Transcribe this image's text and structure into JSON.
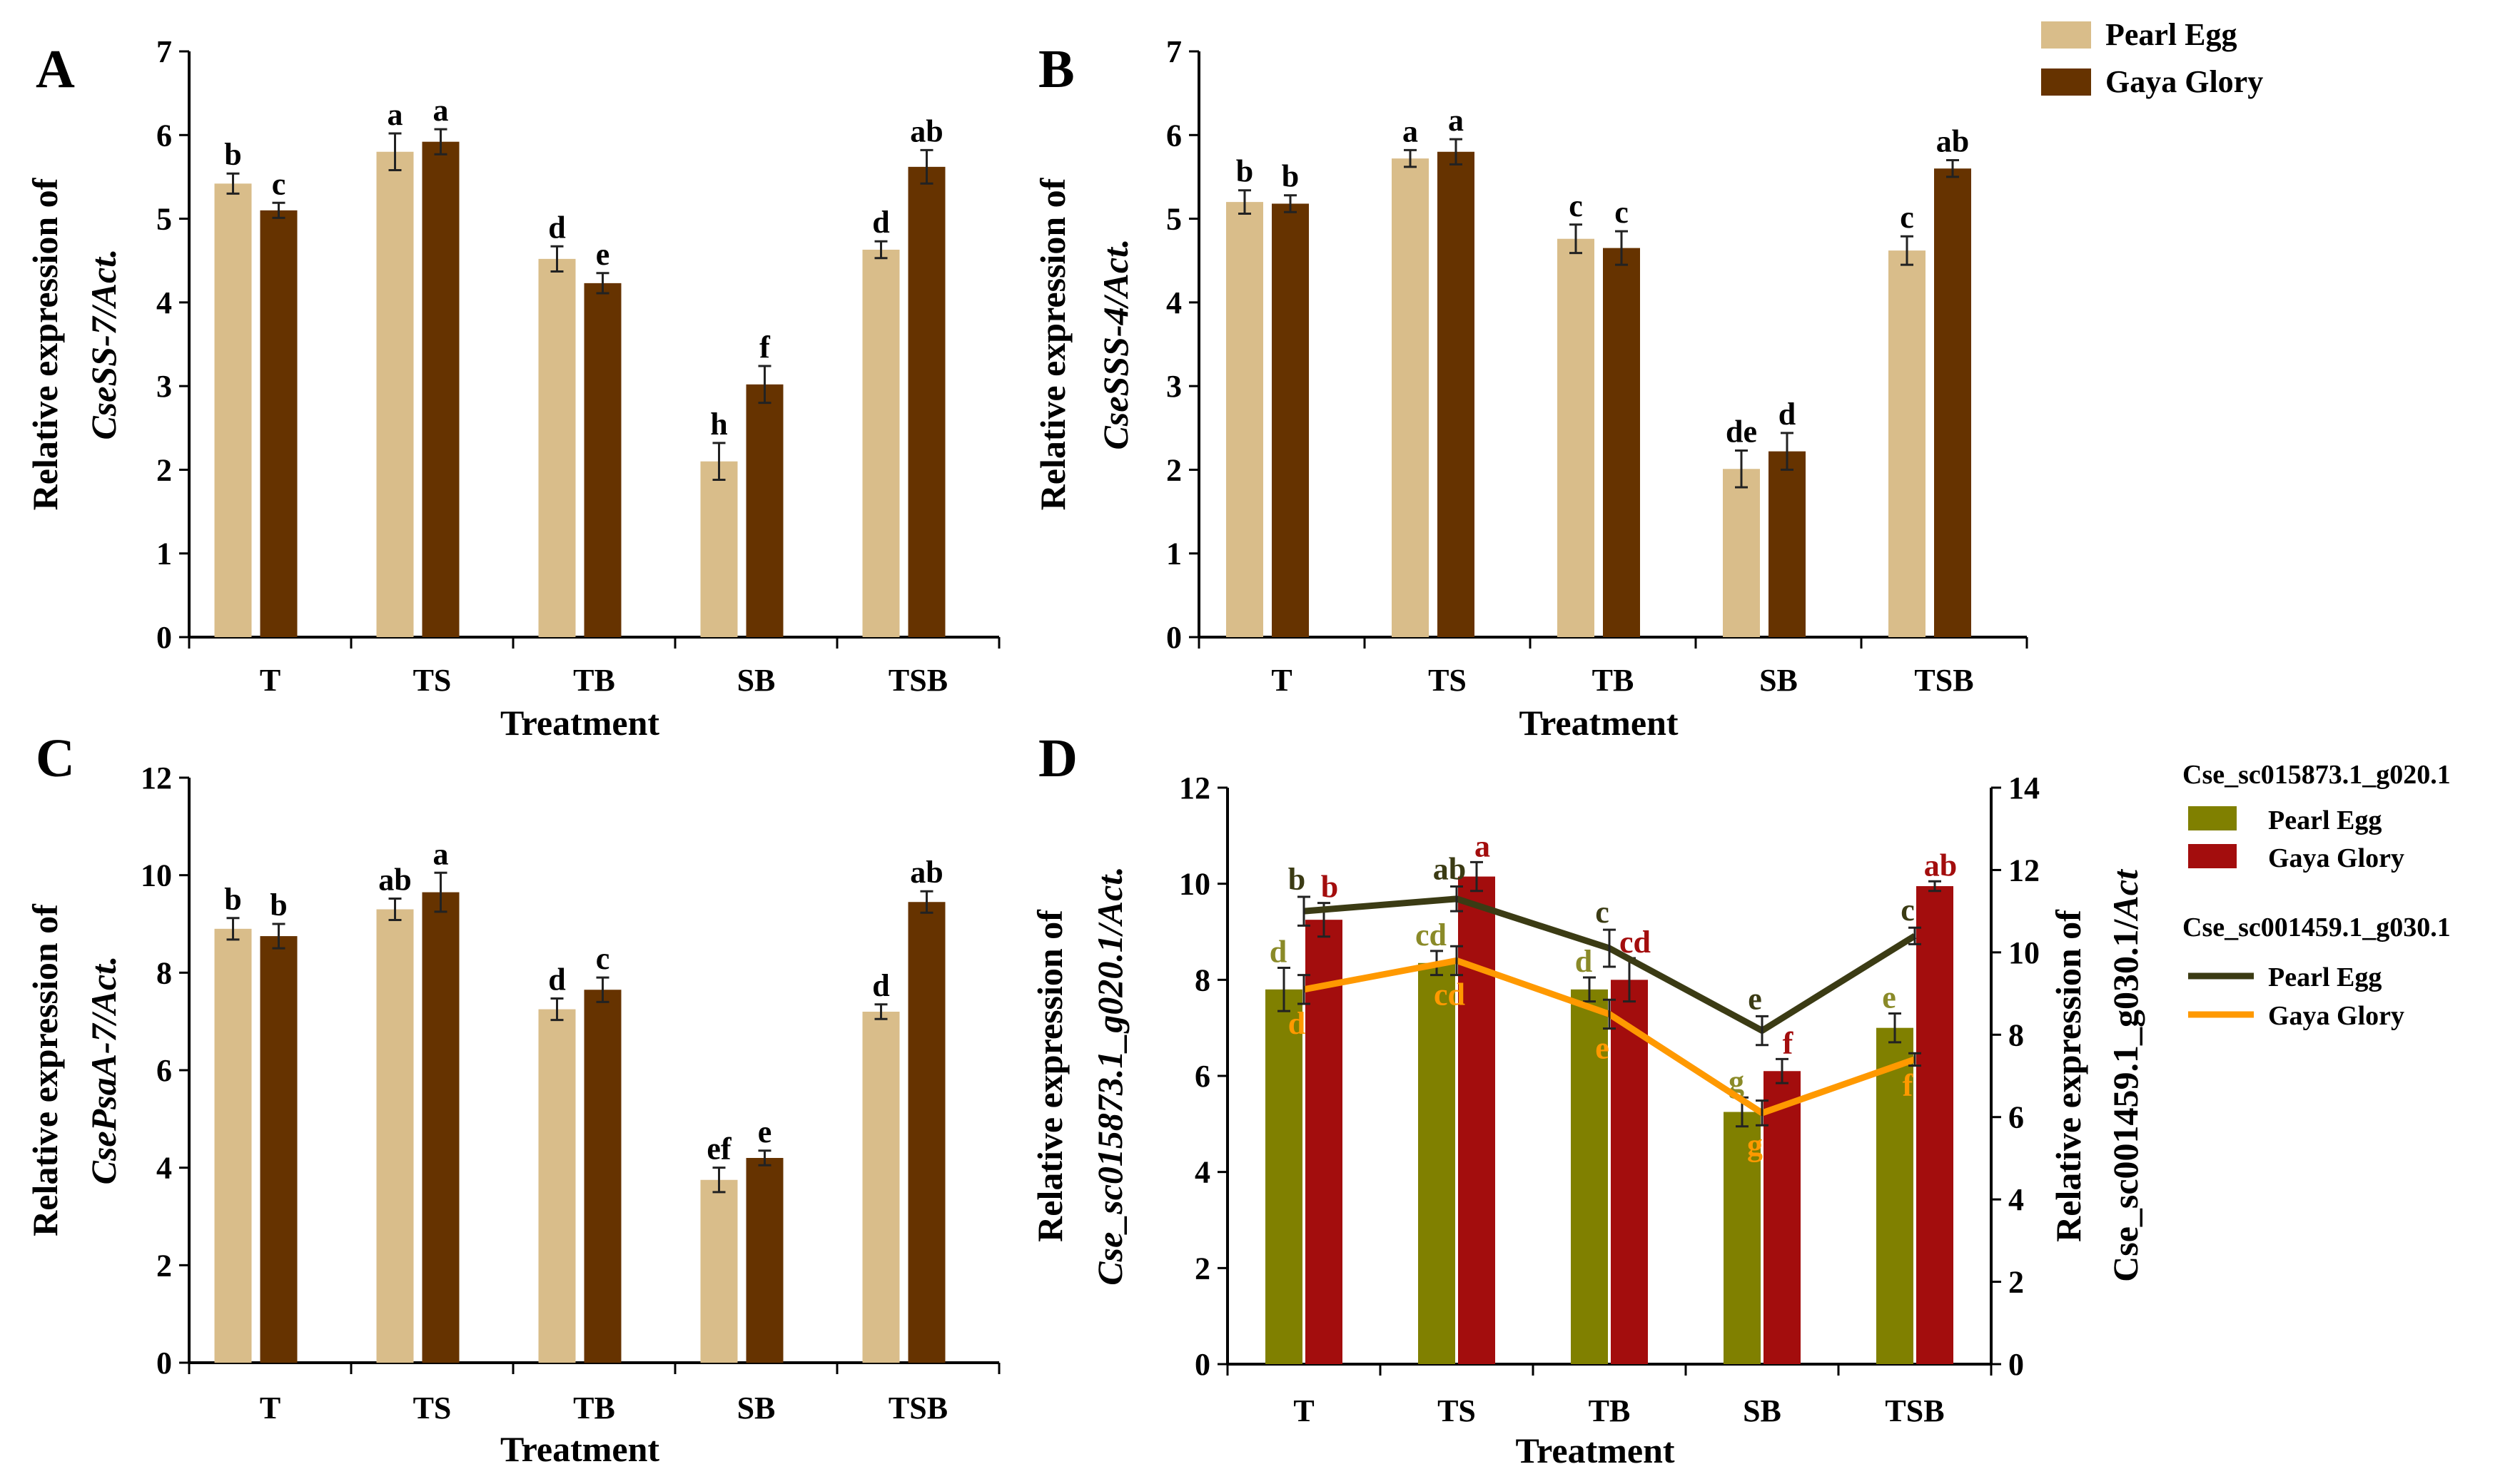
{
  "colors": {
    "pearl_egg_bar": "#d9bd8a",
    "gaya_glory_bar": "#663300",
    "pearl_egg_bar_d": "#808000",
    "gaya_glory_bar_d": "#a30d0d",
    "pearl_egg_line_d": "#3b3b14",
    "gaya_glory_line_d": "#ff9900",
    "pearl_egg_sig_d": "#8a8a28",
    "gaya_glory_sig_d": "#a30d0d",
    "pearl_egg_linesig_d": "#3b3b14",
    "gaya_glory_linesig_d": "#ff9900"
  },
  "legend_top": {
    "series": [
      "Pearl Egg",
      "Gaya Glory"
    ]
  },
  "legend_d": {
    "bar_group_title": "Cse_sc015873.1_g020.1",
    "line_group_title": "Cse_sc001459.1_g030.1",
    "series": [
      "Pearl Egg",
      "Gaya Glory"
    ]
  },
  "chart_data": [
    {
      "panel": "A",
      "type": "bar",
      "categories": [
        "T",
        "TS",
        "TB",
        "SB",
        "TSB"
      ],
      "xlabel": "Treatment",
      "ylabel_line1": "Relative expression of",
      "ylabel_gene": "CseSS-7",
      "ylabel_suffix": "/Act.",
      "ylim": [
        0,
        7
      ],
      "yticks": [
        "0",
        "1",
        "2",
        "3",
        "4",
        "5",
        "6",
        "7"
      ],
      "series": [
        {
          "name": "Pearl Egg",
          "values": [
            5.42,
            5.8,
            4.52,
            2.1,
            4.63
          ],
          "errors": [
            0.12,
            0.22,
            0.15,
            0.22,
            0.1
          ],
          "labels": [
            "b",
            "a",
            "d",
            "h",
            "d"
          ]
        },
        {
          "name": "Gaya Glory",
          "values": [
            5.1,
            5.92,
            4.23,
            3.02,
            5.62
          ],
          "errors": [
            0.09,
            0.15,
            0.12,
            0.22,
            0.2
          ],
          "labels": [
            "c",
            "a",
            "e",
            "f",
            "ab"
          ]
        }
      ]
    },
    {
      "panel": "B",
      "type": "bar",
      "categories": [
        "T",
        "TS",
        "TB",
        "SB",
        "TSB"
      ],
      "xlabel": "Treatment",
      "ylabel_line1": "Relative expression of",
      "ylabel_gene": "CseSSS-4",
      "ylabel_suffix": "/Act.",
      "ylim": [
        0,
        7
      ],
      "yticks": [
        "0",
        "1",
        "2",
        "3",
        "4",
        "5",
        "6",
        "7"
      ],
      "series": [
        {
          "name": "Pearl Egg",
          "values": [
            5.2,
            5.72,
            4.76,
            2.01,
            4.62
          ],
          "errors": [
            0.14,
            0.1,
            0.17,
            0.22,
            0.17
          ],
          "labels": [
            "b",
            "a",
            "c",
            "de",
            "c"
          ]
        },
        {
          "name": "Gaya Glory",
          "values": [
            5.18,
            5.8,
            4.65,
            2.22,
            5.6
          ],
          "errors": [
            0.1,
            0.15,
            0.2,
            0.22,
            0.1
          ],
          "labels": [
            "b",
            "a",
            "c",
            "d",
            "ab"
          ]
        }
      ]
    },
    {
      "panel": "C",
      "type": "bar",
      "categories": [
        "T",
        "TS",
        "TB",
        "SB",
        "TSB"
      ],
      "xlabel": "Treatment",
      "ylabel_line1": "Relative expression of",
      "ylabel_gene": "CsePsaA-7",
      "ylabel_suffix": "/Act.",
      "ylim": [
        0,
        12
      ],
      "yticks": [
        "0",
        "2",
        "4",
        "6",
        "8",
        "10",
        "12"
      ],
      "series": [
        {
          "name": "Pearl Egg",
          "values": [
            8.9,
            9.3,
            7.25,
            3.75,
            7.2
          ],
          "errors": [
            0.22,
            0.22,
            0.22,
            0.25,
            0.15
          ],
          "labels": [
            "b",
            "ab",
            "d",
            "ef",
            "d"
          ]
        },
        {
          "name": "Gaya Glory",
          "values": [
            8.75,
            9.65,
            7.65,
            4.2,
            9.45
          ],
          "errors": [
            0.25,
            0.4,
            0.25,
            0.15,
            0.22
          ],
          "labels": [
            "b",
            "a",
            "c",
            "e",
            "ab"
          ]
        }
      ]
    },
    {
      "panel": "D",
      "type": "bar+line",
      "categories": [
        "T",
        "TS",
        "TB",
        "SB",
        "TSB"
      ],
      "xlabel": "Treatment",
      "ylabel_left_line1": "Relative expression of",
      "ylabel_left_line2": "Cse_sc015873.1_g020.1/",
      "ylabel_left_suffix": "Act.",
      "ylabel_right_line1": "Relative expression of",
      "ylabel_right_line2": "Cse_sc001459.1_g030.1/",
      "ylabel_right_suffix": "Act",
      "ylim_left": [
        0,
        12
      ],
      "yticks_left": [
        "0",
        "2",
        "4",
        "6",
        "8",
        "10",
        "12"
      ],
      "ylim_right": [
        0,
        14
      ],
      "yticks_right": [
        "0",
        "2",
        "4",
        "6",
        "8",
        "10",
        "12",
        "14"
      ],
      "bar_series": [
        {
          "name": "Pearl Egg",
          "values": [
            7.8,
            8.35,
            7.8,
            5.25,
            7.0
          ],
          "errors": [
            0.45,
            0.25,
            0.25,
            0.3,
            0.3
          ],
          "labels": [
            "d",
            "cd",
            "d",
            "g",
            "e"
          ]
        },
        {
          "name": "Gaya Glory",
          "values": [
            9.25,
            10.15,
            8.0,
            6.1,
            9.95
          ],
          "errors": [
            0.35,
            0.3,
            0.45,
            0.25,
            0.1
          ],
          "labels": [
            "b",
            "a",
            "cd",
            "f",
            "ab"
          ]
        }
      ],
      "line_series": [
        {
          "name": "Pearl Egg",
          "values": [
            11.0,
            11.3,
            10.1,
            8.1,
            10.4
          ],
          "errors": [
            0.35,
            0.3,
            0.45,
            0.35,
            0.2
          ],
          "labels": [
            "b",
            "ab",
            "c",
            "e",
            "c"
          ]
        },
        {
          "name": "Gaya Glory",
          "values": [
            9.1,
            9.8,
            8.5,
            6.1,
            7.4
          ],
          "errors": [
            0.35,
            0.35,
            0.35,
            0.3,
            0.15
          ],
          "labels": [
            "d",
            "cd",
            "e",
            "g",
            "f"
          ]
        }
      ]
    }
  ],
  "panel_labels": [
    "A",
    "B",
    "C",
    "D"
  ]
}
